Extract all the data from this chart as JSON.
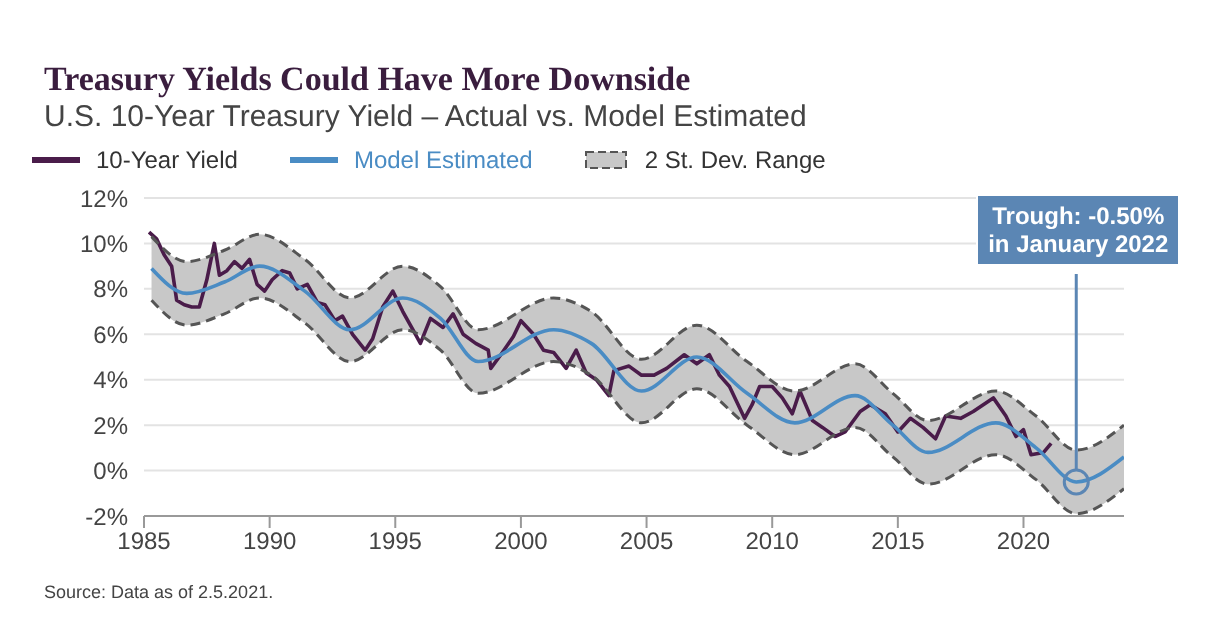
{
  "chart_data": {
    "type": "line",
    "title": "Treasury Yields Could Have More Downside",
    "subtitle": "U.S. 10-Year Treasury Yield – Actual vs. Model Estimated",
    "annotations": [
      {
        "text": "Trough: -0.50% in January 2022",
        "x": 2022.1,
        "y": -0.5
      },
      "2 St. Dev. Range",
      "Source: Data as of 2.5.2021."
    ],
    "series": [
      {
        "name": "10-Year Yield",
        "color": "#4a1c4a",
        "x": [
          1985.2,
          1985.5,
          1985.8,
          1986.1,
          1986.3,
          1986.6,
          1986.9,
          1987.2,
          1987.5,
          1987.8,
          1988.0,
          1988.3,
          1988.6,
          1988.9,
          1989.2,
          1989.5,
          1989.8,
          1990.1,
          1990.5,
          1990.8,
          1991.1,
          1991.5,
          1991.9,
          1992.2,
          1992.6,
          1992.9,
          1993.3,
          1993.8,
          1994.1,
          1994.5,
          1994.9,
          1995.3,
          1995.7,
          1996.0,
          1996.4,
          1996.9,
          1997.3,
          1997.7,
          1998.2,
          1998.7,
          1998.8,
          1999.2,
          1999.7,
          2000.0,
          2000.5,
          2000.9,
          2001.3,
          2001.8,
          2002.2,
          2002.6,
          2003.0,
          2003.5,
          2003.7,
          2004.3,
          2004.8,
          2005.3,
          2005.8,
          2006.5,
          2007.0,
          2007.5,
          2007.9,
          2008.3,
          2008.9,
          2009.2,
          2009.5,
          2010.0,
          2010.4,
          2010.8,
          2011.1,
          2011.6,
          2012.0,
          2012.5,
          2012.9,
          2013.5,
          2013.9,
          2014.5,
          2015.0,
          2015.5,
          2016.0,
          2016.5,
          2016.9,
          2017.5,
          2018.0,
          2018.8,
          2019.3,
          2019.7,
          2020.0,
          2020.3,
          2020.8,
          2021.1
        ],
        "values": [
          10.5,
          10.2,
          9.5,
          9.0,
          7.5,
          7.3,
          7.2,
          7.2,
          8.4,
          10.0,
          8.6,
          8.8,
          9.2,
          8.9,
          9.3,
          8.2,
          7.9,
          8.4,
          8.8,
          8.7,
          8.0,
          8.2,
          7.4,
          7.3,
          6.6,
          6.8,
          6.0,
          5.3,
          5.8,
          7.2,
          7.9,
          7.0,
          6.2,
          5.6,
          6.7,
          6.3,
          6.9,
          6.0,
          5.6,
          5.3,
          4.5,
          5.1,
          5.9,
          6.6,
          6.0,
          5.3,
          5.2,
          4.5,
          5.3,
          4.3,
          4.0,
          3.3,
          4.4,
          4.6,
          4.2,
          4.2,
          4.5,
          5.1,
          4.7,
          5.1,
          4.2,
          3.7,
          2.3,
          2.9,
          3.7,
          3.7,
          3.2,
          2.5,
          3.5,
          2.2,
          1.9,
          1.5,
          1.7,
          2.6,
          2.9,
          2.5,
          1.7,
          2.3,
          1.9,
          1.4,
          2.4,
          2.3,
          2.6,
          3.2,
          2.4,
          1.5,
          1.8,
          0.7,
          0.8,
          1.2
        ]
      },
      {
        "name": "Model Estimated",
        "color": "#4a8cc4",
        "x": [
          1985.3,
          1986.7,
          1988.2,
          1989.6,
          1991.4,
          1993.2,
          1995.3,
          1996.8,
          1998.3,
          2001.3,
          2002.8,
          2004.8,
          2007.0,
          2009.0,
          2010.9,
          2013.3,
          2014.8,
          2016.2,
          2018.9,
          2020.5,
          2022.1,
          2024.0
        ],
        "values": [
          8.9,
          7.8,
          8.3,
          9.0,
          7.9,
          6.2,
          7.6,
          6.7,
          4.8,
          6.2,
          5.6,
          3.5,
          5.0,
          3.4,
          2.1,
          3.3,
          2.0,
          0.8,
          2.1,
          1.0,
          -0.5,
          0.6
        ],
        "lower": [
          7.5,
          6.4,
          6.9,
          7.6,
          6.5,
          4.8,
          6.2,
          5.3,
          3.4,
          4.8,
          4.2,
          2.1,
          3.6,
          2.0,
          0.7,
          1.9,
          0.6,
          -0.6,
          0.7,
          -0.4,
          -1.9,
          -0.8
        ],
        "upper": [
          10.3,
          9.2,
          9.7,
          10.4,
          9.3,
          7.6,
          9.0,
          8.1,
          6.2,
          7.6,
          7.0,
          4.9,
          6.4,
          4.8,
          3.5,
          4.7,
          3.4,
          2.2,
          3.5,
          2.4,
          0.9,
          2.0
        ]
      },
      {
        "color": "#555555",
        "line_style": "dashed",
        "x": [
          1985.3,
          1986.7,
          1988.2,
          1989.6,
          1991.4,
          1993.2,
          1995.3,
          1996.8,
          1998.3,
          2001.3,
          2002.8,
          2004.8,
          2007.0,
          2009.0,
          2010.9,
          2013.3,
          2014.8,
          2016.2,
          2018.9,
          2020.5,
          2022.1,
          2024.0
        ],
        "values": [
          10.3,
          9.2,
          9.7,
          10.4,
          9.3,
          7.6,
          9.0,
          8.1,
          6.2,
          7.6,
          7.0,
          4.9,
          6.4,
          4.8,
          3.5,
          4.7,
          3.4,
          2.2,
          3.5,
          2.4,
          0.9,
          2.0
        ]
      },
      {
        "color": "#555555",
        "line_style": "dashed",
        "x": [
          1985.3,
          1986.7,
          1988.2,
          1989.6,
          1991.4,
          1993.2,
          1995.3,
          1996.8,
          1998.3,
          2001.3,
          2002.8,
          2004.8,
          2007.0,
          2009.0,
          2010.9,
          2013.3,
          2014.8,
          2016.2,
          2018.9,
          2020.5,
          2022.1,
          2024.0
        ],
        "values": [
          7.5,
          6.4,
          6.9,
          7.6,
          6.5,
          4.8,
          6.2,
          5.3,
          3.4,
          4.8,
          4.2,
          2.1,
          3.6,
          2.0,
          0.7,
          1.9,
          0.6,
          -0.6,
          0.7,
          -0.4,
          -1.9,
          -0.8
        ]
      }
    ],
    "xlim": [
      1985,
      2024
    ],
    "xticks": [
      1985,
      1990,
      1995,
      2000,
      2005,
      2010,
      2015,
      2020
    ],
    "ylim": [
      -2,
      12
    ],
    "yticks": [
      {
        "value": -2,
        "label": "-2%"
      },
      {
        "value": 0,
        "label": "0%"
      },
      {
        "value": 2,
        "label": "2%"
      },
      {
        "value": 4,
        "label": "4%"
      },
      {
        "value": 6,
        "label": "6%"
      },
      {
        "value": 8,
        "label": "8%"
      },
      {
        "value": 10,
        "label": "10%"
      },
      {
        "value": 12,
        "label": "12%"
      }
    ],
    "grid": "y",
    "legend": "top left",
    "marker": "none",
    "line_style": "solid"
  }
}
